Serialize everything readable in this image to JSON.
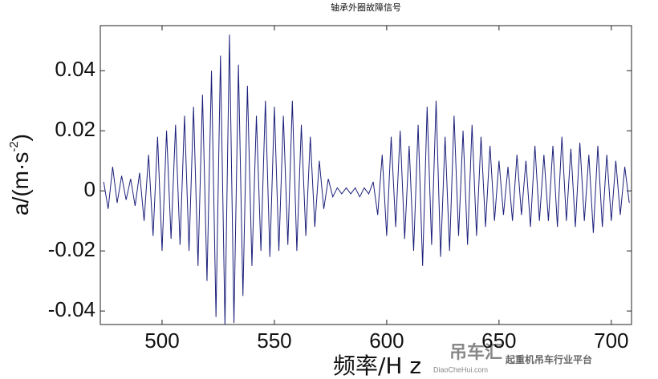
{
  "chart_data": {
    "type": "line",
    "title": "轴承外圈故障信号",
    "x_label": "频率/H z",
    "y_label": "a/(m·s",
    "y_label_sup": "-2",
    "y_label_end": ")",
    "watermark": {
      "brand": "吊车汇",
      "site": "DiaoCheHui.com",
      "slogan": "起重机吊车行业平台"
    },
    "x": [
      474,
      476,
      478,
      480,
      482,
      484,
      486,
      488,
      490,
      492,
      494,
      496,
      498,
      500,
      502,
      504,
      506,
      508,
      510,
      512,
      514,
      516,
      518,
      520,
      522,
      524,
      526,
      528,
      530,
      532,
      534,
      536,
      538,
      540,
      542,
      544,
      546,
      548,
      550,
      552,
      554,
      556,
      558,
      560,
      562,
      564,
      566,
      568,
      570,
      572,
      574,
      576,
      578,
      580,
      582,
      584,
      586,
      588,
      590,
      592,
      594,
      596,
      598,
      600,
      602,
      604,
      606,
      608,
      610,
      612,
      614,
      616,
      618,
      620,
      622,
      624,
      626,
      628,
      630,
      632,
      634,
      636,
      638,
      640,
      642,
      644,
      646,
      648,
      650,
      652,
      654,
      656,
      658,
      660,
      662,
      664,
      666,
      668,
      670,
      672,
      674,
      676,
      678,
      680,
      682,
      684,
      686,
      688,
      690,
      692,
      694,
      696,
      698,
      700,
      702,
      704,
      706,
      708
    ],
    "series": [
      {
        "color": "#1b1f7a",
        "values": [
          0.003,
          -0.006,
          0.008,
          -0.004,
          0.005,
          -0.003,
          0.004,
          -0.005,
          0.006,
          -0.01,
          0.012,
          -0.015,
          0.018,
          -0.02,
          0.02,
          -0.016,
          0.022,
          -0.018,
          0.025,
          -0.02,
          0.028,
          -0.025,
          0.032,
          -0.03,
          0.04,
          -0.042,
          0.045,
          -0.045,
          0.052,
          -0.044,
          0.042,
          -0.035,
          0.035,
          -0.025,
          0.025,
          -0.02,
          0.03,
          -0.022,
          0.028,
          -0.02,
          0.025,
          -0.018,
          0.03,
          -0.02,
          0.022,
          -0.015,
          0.018,
          -0.012,
          0.01,
          -0.006,
          0.004,
          -0.002,
          0.001,
          -0.001,
          0.001,
          -0.001,
          0.001,
          -0.002,
          0.001,
          -0.001,
          0.003,
          -0.008,
          0.012,
          -0.015,
          0.018,
          -0.012,
          0.02,
          -0.016,
          0.015,
          -0.02,
          0.022,
          -0.025,
          0.028,
          -0.018,
          0.03,
          -0.022,
          0.018,
          -0.02,
          0.025,
          -0.015,
          0.02,
          -0.018,
          0.022,
          -0.015,
          0.018,
          -0.012,
          0.015,
          -0.01,
          0.01,
          -0.008,
          0.008,
          -0.01,
          0.012,
          -0.008,
          0.01,
          -0.012,
          0.015,
          -0.01,
          0.012,
          -0.01,
          0.015,
          -0.012,
          0.018,
          -0.01,
          0.014,
          -0.012,
          0.016,
          -0.01,
          0.012,
          -0.014,
          0.015,
          -0.012,
          0.012,
          -0.01,
          0.01,
          -0.008,
          0.008,
          -0.004
        ]
      }
    ],
    "xlim": [
      472.5,
      709
    ],
    "ylim": [
      -0.0445,
      0.055
    ],
    "xticks": [
      500,
      550,
      600,
      650,
      700
    ],
    "yticks": [
      -0.04,
      -0.02,
      0,
      0.02,
      0.04
    ]
  }
}
